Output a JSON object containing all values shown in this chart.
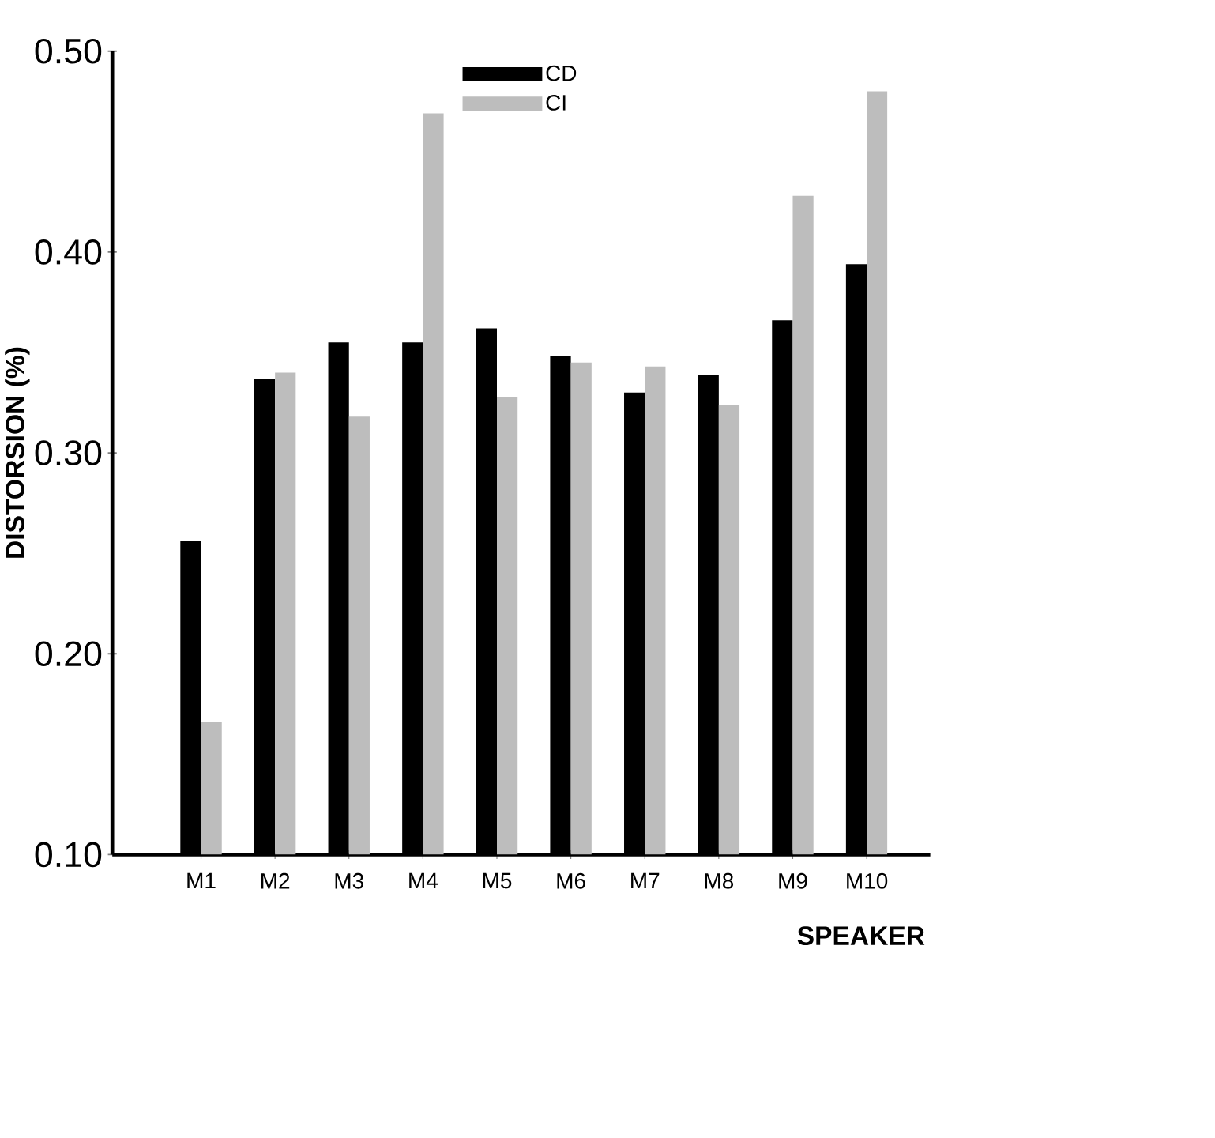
{
  "chart_data": {
    "type": "bar",
    "xlabel": "SPEAKER",
    "ylabel": "DISTORSION (%)",
    "categories": [
      "M1",
      "M2",
      "M3",
      "M4",
      "M5",
      "M6",
      "M7",
      "M8",
      "M9",
      "M10"
    ],
    "series": [
      {
        "name": "CD",
        "color": "#000000",
        "values": [
          0.256,
          0.337,
          0.355,
          0.355,
          0.362,
          0.348,
          0.33,
          0.339,
          0.366,
          0.394
        ]
      },
      {
        "name": "CI",
        "color": "#bdbdbd",
        "values": [
          0.166,
          0.34,
          0.318,
          0.469,
          0.328,
          0.345,
          0.343,
          0.324,
          0.428,
          0.48
        ]
      }
    ],
    "ylim": [
      0.1,
      0.5
    ],
    "yticks": [
      {
        "value": 0.1,
        "label": "0.10"
      },
      {
        "value": 0.2,
        "label": "0.20"
      },
      {
        "value": 0.3,
        "label": "0.30"
      },
      {
        "value": 0.4,
        "label": "0.40"
      },
      {
        "value": 0.5,
        "label": "0.50"
      }
    ],
    "grid": false,
    "legend": "top"
  }
}
